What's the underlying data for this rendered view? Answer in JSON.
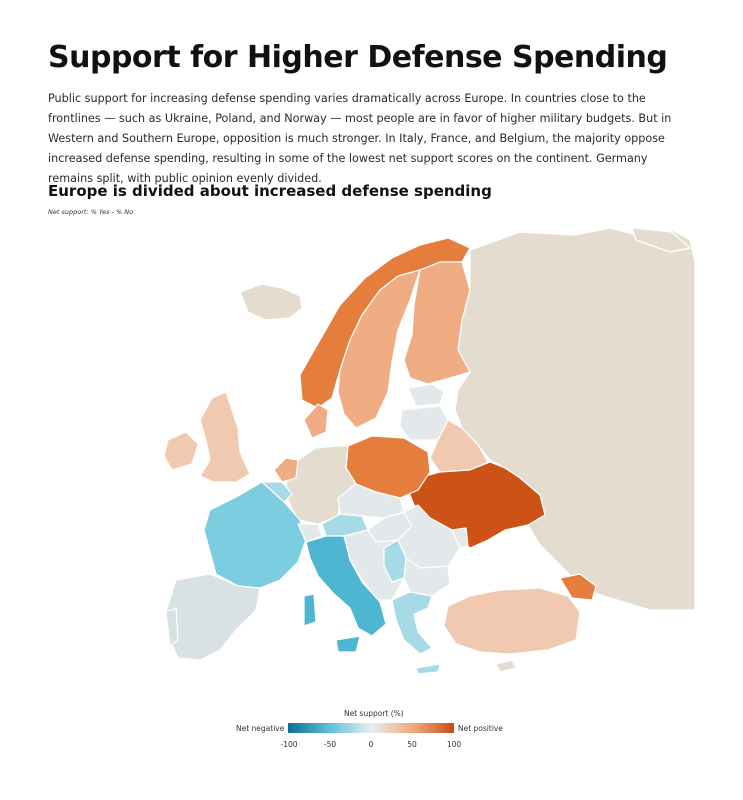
{
  "header": {
    "title": "Support for Higher Defense Spending",
    "lede": "Public support for increasing defense spending varies dramatically across Europe. In countries close to the frontlines — such as Ukraine, Poland, and Norway — most people are in favor of higher military budgets. But in Western and Southern Europe, opposition is much stronger. In Italy, France, and Belgium, the majority oppose increased defense spending, resulting in some of the lowest net support scores on the continent. Germany remains split, with public opinion evenly divided."
  },
  "chart": {
    "title": "Europe is divided about increased defense spending",
    "subtitle": "Net support: % Yes - % No"
  },
  "legend": {
    "title": "Net support (%)",
    "left_label": "Net negative",
    "right_label": "Net positive",
    "ticks": [
      "-100",
      "-50",
      "0",
      "50",
      "100"
    ],
    "colors": [
      "#0d6e92",
      "#5ec0d9",
      "#e9eef0",
      "#f1a97f",
      "#c74d12"
    ]
  },
  "colors": {
    "no_data": "#e5dcd0",
    "strong_positive": "#cc5216",
    "positive": "#e57e3d",
    "mild_positive": "#f0ac82",
    "slight_positive": "#f1c9b0",
    "neutral": "#e3e9eb",
    "mild_negative": "#a6dae7",
    "negative": "#7ccde0",
    "strong_negative": "#4fb6d2"
  }
}
